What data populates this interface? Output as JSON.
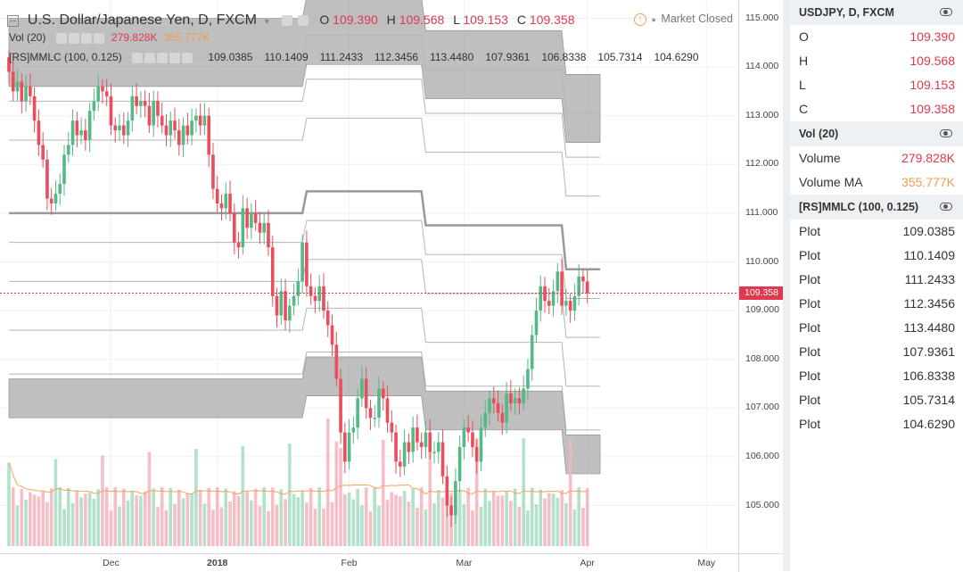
{
  "legend": {
    "title": "U.S. Dollar/Japanese Yen, D, FXCM",
    "o_label": "O",
    "o_value": "109.390",
    "h_label": "H",
    "h_value": "109.568",
    "l_label": "L",
    "l_value": "109.153",
    "c_label": "C",
    "c_value": "109.358",
    "market_status": "Market Closed",
    "vol_title": "Vol (20)",
    "vol_value": "279.828K",
    "vol_ma_value": "355.777K",
    "mmlc_title": "[RS]MMLC (100, 0.125)",
    "mmlc_values": [
      "109.0385",
      "110.1409",
      "111.2433",
      "112.3456",
      "113.4480",
      "107.9361",
      "106.8338",
      "105.7314",
      "104.6290"
    ]
  },
  "colors": {
    "up": "#53b987",
    "down": "#eb4d5c",
    "band": "#a9a9a9",
    "vol_up": "#a5dcc3",
    "vol_down": "#f5b3bb",
    "ma": "#f2a35e"
  },
  "current_price_label": "109.358",
  "panel": {
    "symbol": "USDJPY, D, FXCM",
    "ohlc": [
      {
        "label": "O",
        "value": "109.390"
      },
      {
        "label": "H",
        "value": "109.568"
      },
      {
        "label": "L",
        "value": "109.153"
      },
      {
        "label": "C",
        "value": "109.358"
      }
    ],
    "vol_title": "Vol (20)",
    "volume_label": "Volume",
    "volume_value": "279.828K",
    "volume_ma_label": "Volume MA",
    "volume_ma_value": "355.777K",
    "mmlc_title": "[RS]MMLC (100, 0.125)",
    "plots": [
      {
        "label": "Plot",
        "value": "109.0385"
      },
      {
        "label": "Plot",
        "value": "110.1409"
      },
      {
        "label": "Plot",
        "value": "111.2433"
      },
      {
        "label": "Plot",
        "value": "112.3456"
      },
      {
        "label": "Plot",
        "value": "113.4480"
      },
      {
        "label": "Plot",
        "value": "107.9361"
      },
      {
        "label": "Plot",
        "value": "106.8338"
      },
      {
        "label": "Plot",
        "value": "105.7314"
      },
      {
        "label": "Plot",
        "value": "104.6290"
      }
    ]
  },
  "chart_data": {
    "type": "candlestick",
    "symbol": "U.S. Dollar/Japanese Yen, D, FXCM",
    "y_ticks": [
      "115.000",
      "114.000",
      "113.000",
      "112.000",
      "111.000",
      "110.000",
      "109.000",
      "108.000",
      "107.000",
      "106.000",
      "105.000"
    ],
    "ylim": [
      104.3,
      115.2
    ],
    "x_ticks": [
      {
        "label": "Dec",
        "bar": 24
      },
      {
        "label": "2018",
        "bar": 49
      },
      {
        "label": "Feb",
        "bar": 80
      },
      {
        "label": "Mar",
        "bar": 107
      },
      {
        "label": "Apr",
        "bar": 136
      },
      {
        "label": "May",
        "bar": 164
      }
    ],
    "closes": [
      113.9,
      113.5,
      113.7,
      113.3,
      113.6,
      113.4,
      112.9,
      112.4,
      112.1,
      111.3,
      111.2,
      111.4,
      111.6,
      112.2,
      112.4,
      112.9,
      112.6,
      112.7,
      112.5,
      113.1,
      113.3,
      113.6,
      113.5,
      113.4,
      112.8,
      112.7,
      112.8,
      112.6,
      112.9,
      113.4,
      113.2,
      113.3,
      113.2,
      112.8,
      113.3,
      113.0,
      112.8,
      112.6,
      112.9,
      112.7,
      112.4,
      112.8,
      112.6,
      112.9,
      113.0,
      112.8,
      113.0,
      112.2,
      111.5,
      111.2,
      111.1,
      111.4,
      111.0,
      110.4,
      110.3,
      111.1,
      110.7,
      111.0,
      110.8,
      110.6,
      110.8,
      110.3,
      109.3,
      108.9,
      109.4,
      108.8,
      109.1,
      109.3,
      109.6,
      110.4,
      109.5,
      109.3,
      109.2,
      109.5,
      109.0,
      108.7,
      108.3,
      107.6,
      106.5,
      105.9,
      106.5,
      106.6,
      107.2,
      107.6,
      107.0,
      106.8,
      106.8,
      107.4,
      107.2,
      106.7,
      106.5,
      105.9,
      105.8,
      106.3,
      106.1,
      106.6,
      106.3,
      106.2,
      106.5,
      106.1,
      106.1,
      106.3,
      105.6,
      105.0,
      104.8,
      105.5,
      106.2,
      106.6,
      106.5,
      106.2,
      105.9,
      106.6,
      106.9,
      107.2,
      107.1,
      106.9,
      106.7,
      107.3,
      107.1,
      107.2,
      107.1,
      107.4,
      107.8,
      108.5,
      109.0,
      109.5,
      109.2,
      109.1,
      109.4,
      109.8,
      109.1,
      109.2,
      109.0,
      109.3,
      109.7,
      109.6,
      109.358
    ],
    "volume_max": 1.0,
    "mmlc_levels": [
      109.0385,
      110.1409,
      111.2433,
      112.3456,
      113.448,
      107.9361,
      106.8338,
      105.7314,
      104.629
    ]
  }
}
